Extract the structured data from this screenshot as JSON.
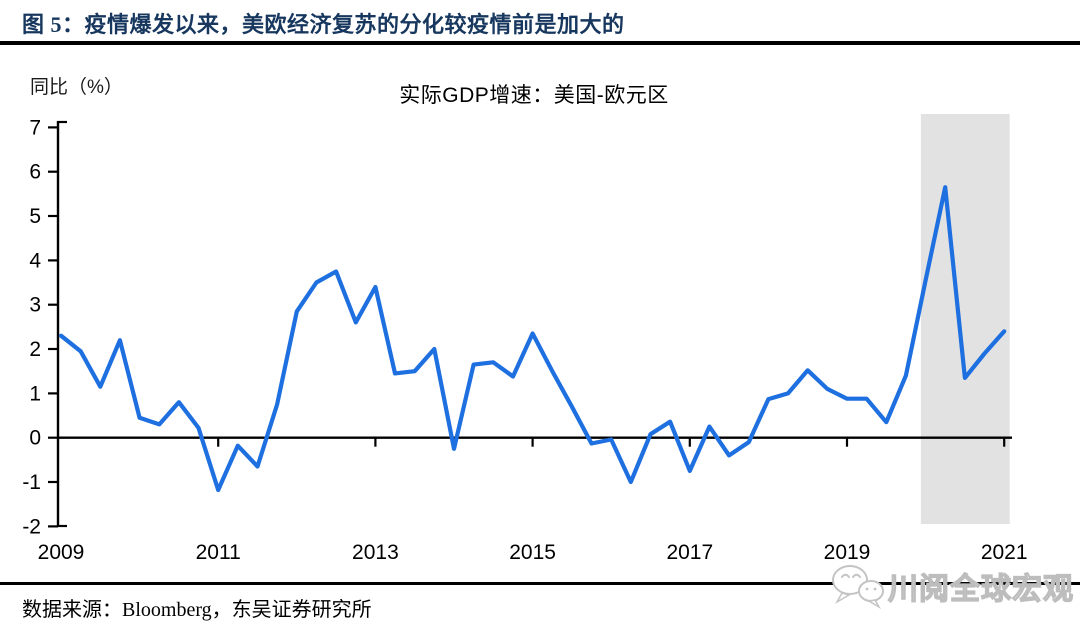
{
  "figure": {
    "title": "图 5：疫情爆发以来，美欧经济复苏的分化较疫情前是加大的",
    "source": "数据来源：Bloomberg，东吴证券研究所",
    "watermark": "川阅全球宏观"
  },
  "chart_data": {
    "type": "line",
    "title": "实际GDP增速：美国-欧元区",
    "ylabel": "同比（%）",
    "xlabel": "",
    "legend": "none",
    "grid": false,
    "ylim": [
      -2,
      7
    ],
    "xlim": [
      2008.95,
      2021.07
    ],
    "y_ticks": [
      7,
      6,
      5,
      4,
      3,
      2,
      1,
      0,
      -1,
      -2
    ],
    "x_tick_labels": [
      "2009",
      "2011",
      "2013",
      "2015",
      "2017",
      "2019",
      "2021"
    ],
    "x": [
      2009.0,
      2009.25,
      2009.5,
      2009.75,
      2010.0,
      2010.25,
      2010.5,
      2010.75,
      2011.0,
      2011.25,
      2011.5,
      2011.75,
      2012.0,
      2012.25,
      2012.5,
      2012.75,
      2013.0,
      2013.25,
      2013.5,
      2013.75,
      2014.0,
      2014.25,
      2014.5,
      2014.75,
      2015.0,
      2015.25,
      2015.5,
      2015.75,
      2016.0,
      2016.25,
      2016.5,
      2016.75,
      2017.0,
      2017.25,
      2017.5,
      2017.75,
      2018.0,
      2018.25,
      2018.5,
      2018.75,
      2019.0,
      2019.25,
      2019.5,
      2019.75,
      2020.0,
      2020.25,
      2020.5,
      2020.75,
      2021.0
    ],
    "values": [
      2.3,
      1.95,
      1.15,
      2.2,
      0.45,
      0.3,
      0.8,
      0.22,
      -1.18,
      -0.18,
      -0.65,
      0.75,
      2.85,
      3.5,
      3.75,
      2.6,
      3.4,
      1.45,
      1.5,
      2.0,
      -0.25,
      1.65,
      1.7,
      1.38,
      2.35,
      1.5,
      0.7,
      -0.13,
      -0.04,
      -1.0,
      0.08,
      0.36,
      -0.75,
      0.25,
      -0.4,
      -0.1,
      0.87,
      1.0,
      1.52,
      1.1,
      0.88,
      0.88,
      0.35,
      1.4,
      3.55,
      5.65,
      1.35,
      1.9,
      2.4
    ],
    "line_color": "#1E6FE0",
    "axis_color": "#000000",
    "shaded_region": {
      "x_start": 2019.94,
      "x_end": 2021.07,
      "color": "#E2E2E2",
      "meaning": "疫情爆发以来"
    }
  },
  "colors": {
    "title_navy": "#17375E",
    "rule_black": "#000000",
    "watermark_gray": "#C4C4C4"
  }
}
